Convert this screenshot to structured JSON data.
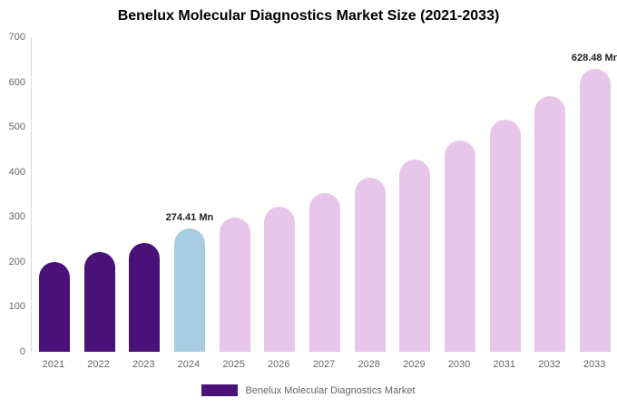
{
  "legend": {
    "label": "Benelux Molecular Diagnostics Market",
    "swatch_color": "#4a1279"
  },
  "chart_data": {
    "type": "bar",
    "title": "Benelux Molecular Diagnostics Market Size (2021-2033)",
    "categories": [
      "2021",
      "2022",
      "2023",
      "2024",
      "2025",
      "2026",
      "2027",
      "2028",
      "2029",
      "2030",
      "2031",
      "2032",
      "2033"
    ],
    "values": [
      200,
      221,
      243,
      274.41,
      298,
      323,
      353,
      388,
      428,
      470,
      516,
      568,
      628.48
    ],
    "roles": [
      "historical",
      "historical",
      "historical",
      "current",
      "forecast",
      "forecast",
      "forecast",
      "forecast",
      "forecast",
      "forecast",
      "forecast",
      "forecast",
      "forecast"
    ],
    "colors": {
      "historical": "#4a1279",
      "current": "#a7cde2",
      "forecast": "#e8c6ea"
    },
    "xlabel": "",
    "ylabel": "",
    "ylim": [
      0,
      700
    ],
    "yticks": [
      0,
      100,
      200,
      300,
      400,
      500,
      600,
      700
    ],
    "grid": false,
    "legend_position": "bottom",
    "annotations": [
      {
        "category": "2024",
        "text": "274.41 Mn"
      },
      {
        "category": "2033",
        "text": "628.48 Mn"
      }
    ]
  }
}
